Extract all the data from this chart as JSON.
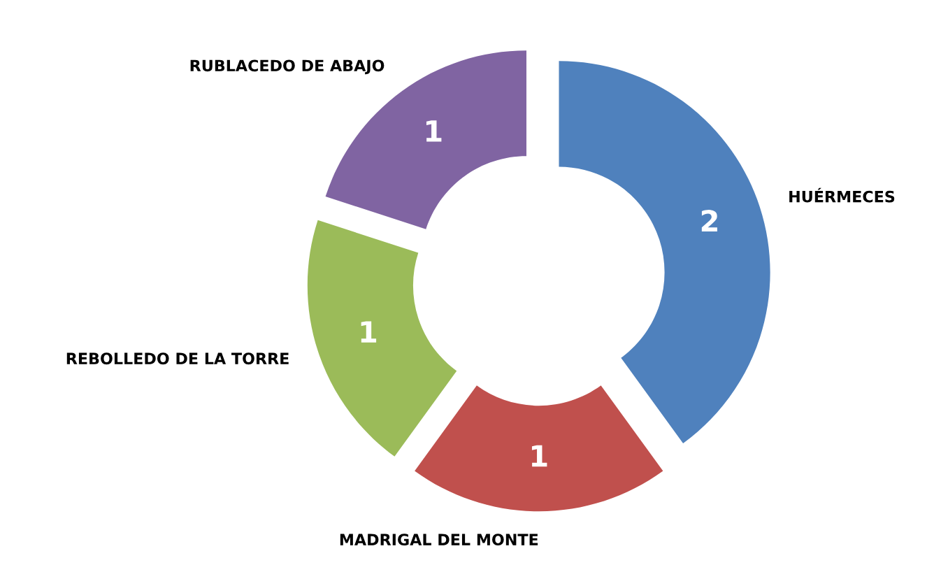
{
  "chart_data": {
    "type": "donut",
    "categories": [
      "HUÉRMECES",
      "MADRIGAL DEL MONTE",
      "REBOLLEDO DE LA TORRE",
      "RUBLACEDO DE ABAJO"
    ],
    "values": [
      2,
      1,
      1,
      1
    ],
    "colors": [
      "#4f81bd",
      "#c0504d",
      "#9bbb59",
      "#8064a2"
    ],
    "data_labels": true
  }
}
